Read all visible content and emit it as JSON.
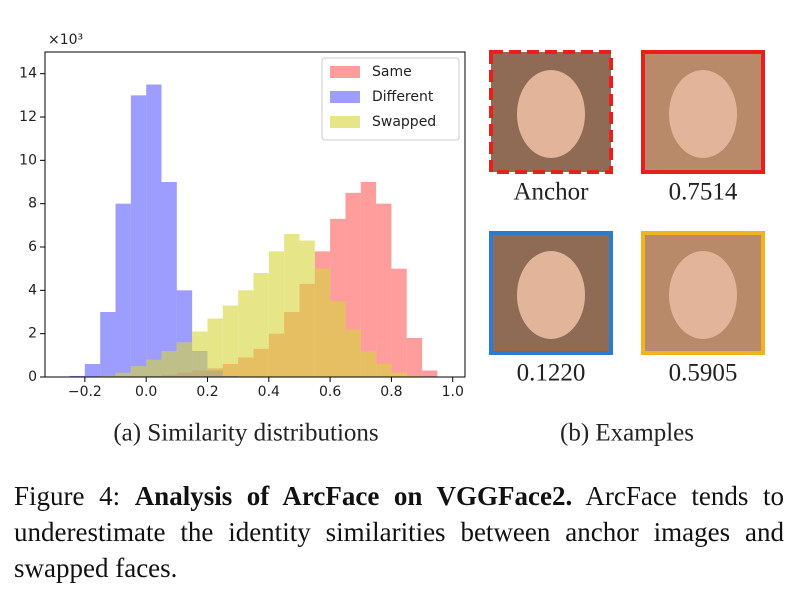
{
  "chart_data": {
    "type": "histogram",
    "y_offset_label": "×10³",
    "bins": [
      -0.3,
      -0.25,
      -0.2,
      -0.15,
      -0.1,
      -0.05,
      0,
      0.05,
      0.1,
      0.15,
      0.2,
      0.25,
      0.3,
      0.35,
      0.4,
      0.45,
      0.5,
      0.55,
      0.6,
      0.65,
      0.7,
      0.75,
      0.8,
      0.85,
      0.9,
      0.95,
      1.0
    ],
    "series": [
      {
        "name": "Same",
        "color": "#ff5c5c",
        "values": [
          0,
          0,
          0,
          0,
          0,
          0,
          0.05,
          0.1,
          0.2,
          0.3,
          0.4,
          0.6,
          0.9,
          1.3,
          2,
          3,
          4.3,
          5.8,
          7.3,
          8.5,
          9,
          8,
          5,
          1.8,
          0.3,
          0.02
        ]
      },
      {
        "name": "Different",
        "color": "#5c5cff",
        "values": [
          0,
          0.05,
          0.6,
          3,
          8,
          13,
          13.5,
          9,
          4,
          1.2,
          0.3,
          0.05,
          0,
          0,
          0,
          0,
          0,
          0,
          0,
          0,
          0,
          0,
          0,
          0,
          0,
          0
        ]
      },
      {
        "name": "Swapped",
        "color": "#d6d63a",
        "values": [
          0,
          0,
          0,
          0.05,
          0.2,
          0.5,
          0.8,
          1.2,
          1.6,
          2.1,
          2.7,
          3.3,
          4,
          4.8,
          5.8,
          6.6,
          6.3,
          5,
          3.5,
          2.2,
          1.2,
          0.6,
          0.2,
          0.05,
          0,
          0
        ]
      }
    ],
    "xlim": [
      -0.33,
      1.04
    ],
    "ylim": [
      0,
      15
    ],
    "xticks": [
      {
        "value": -0.2,
        "label": "−0.2"
      },
      {
        "value": 0,
        "label": "0.0"
      },
      0.2,
      0.4,
      0.6,
      0.8,
      {
        "value": 1,
        "label": "1.0"
      }
    ],
    "yticks": [
      0,
      2,
      4,
      6,
      8,
      10,
      12,
      14
    ],
    "legend": "upper right",
    "caption": "(a) Similarity distributions"
  },
  "examples": {
    "caption": "(b) Examples",
    "items": [
      {
        "label": "Anchor",
        "border": "#e8201c"
      },
      {
        "label": "0.7514",
        "border": "#e8201c"
      },
      {
        "label": "0.1220",
        "border": "#2b7bd0"
      },
      {
        "label": "0.5905",
        "border": "#f2b41e"
      }
    ]
  },
  "figure_caption": {
    "label": "Figure 4:",
    "bold": "Analysis of ArcFace on VGGFace2.",
    "text": "ArcFace tends to underestimate the identity similarities between anchor images and swapped faces."
  }
}
